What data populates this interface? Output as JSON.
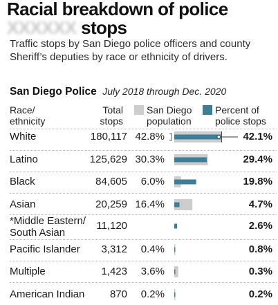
{
  "title_line1": "Racial breakdown of police",
  "title_line2_obscured": "XXXXXX",
  "title_line2": "stops",
  "subtitle": "Traffic stops by San Diego police officers and county Sheriff’s deputies by race or ethnicity of drivers.",
  "section_name": "San Diego Police",
  "section_range": "July 2018 through Dec. 2020",
  "headers": {
    "race": [
      "Race/",
      "ethnicity"
    ],
    "stops": [
      "Total",
      "stops"
    ],
    "population": [
      "San Diego",
      "population"
    ],
    "percent": [
      "Percent of",
      "police stops"
    ]
  },
  "colors": {
    "population": "#cdcdcd",
    "stops": "#3d7d96"
  },
  "chart_data": {
    "type": "bar",
    "title": "San Diego Police",
    "subtitle": "July 2018 through Dec. 2020",
    "categories": [
      "White",
      "Latino",
      "Black",
      "Asian",
      "*Middle Eastern/ South Asian",
      "Pacific Islander",
      "Multiple",
      "American Indian"
    ],
    "total_stops": [
      180117,
      125629,
      84605,
      20259,
      11120,
      3312,
      1423,
      870
    ],
    "total_stops_labels": [
      "180,117",
      "125,629",
      "84,605",
      "20,259",
      "11,120",
      "3,312",
      "1,423",
      "870"
    ],
    "series": [
      {
        "name": "San Diego population",
        "values": [
          42.8,
          30.3,
          6.0,
          16.4,
          null,
          0.4,
          3.6,
          0.2
        ],
        "labels": [
          "42.8%",
          "30.3%",
          "6.0%",
          "16.4%",
          "",
          "0.4%",
          "3.6%",
          "0.2%"
        ]
      },
      {
        "name": "Percent of police stops",
        "values": [
          42.1,
          29.4,
          19.8,
          4.7,
          2.6,
          0.8,
          0.3,
          0.2
        ],
        "labels": [
          "42.1%",
          "29.4%",
          "19.8%",
          "4.7%",
          "2.6%",
          "0.8%",
          "0.3%",
          "0.2%"
        ]
      }
    ]
  }
}
